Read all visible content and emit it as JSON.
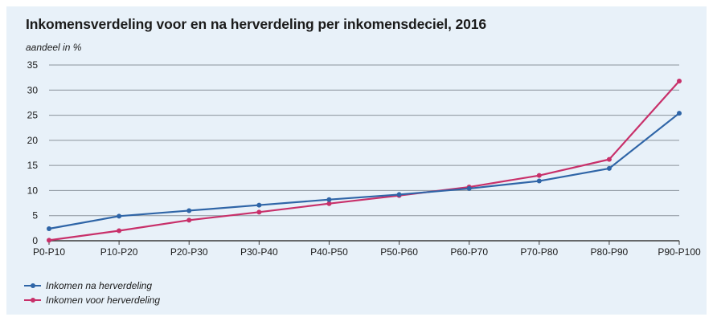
{
  "title": "Inkomensverdeling voor en na herverdeling per inkomensdeciel, 2016",
  "colors": {
    "panel": "#e8f1f9",
    "grid": "#8a939c",
    "text": "#1b1b1b"
  },
  "chart_data": {
    "type": "line",
    "categories": [
      "P0-P10",
      "P10-P20",
      "P20-P30",
      "P30-P40",
      "P40-P50",
      "P50-P60",
      "P60-P70",
      "P70-P80",
      "P80-P90",
      "P90-P100"
    ],
    "ylabel": "aandeel in %",
    "ylim": [
      0,
      35
    ],
    "yticks": [
      0,
      5,
      10,
      15,
      20,
      25,
      30,
      35
    ],
    "grid": true,
    "legend_position": "bottom-left",
    "series": [
      {
        "name": "Inkomen na herverdeling",
        "color": "#2f65a7",
        "values": [
          2.4,
          4.9,
          6.0,
          7.1,
          8.2,
          9.2,
          10.4,
          11.9,
          14.4,
          25.4
        ]
      },
      {
        "name": "Inkomen voor herverdeling",
        "color": "#c8306a",
        "values": [
          0.1,
          2.0,
          4.1,
          5.7,
          7.4,
          9.0,
          10.7,
          13.0,
          16.2,
          31.8
        ]
      }
    ]
  }
}
